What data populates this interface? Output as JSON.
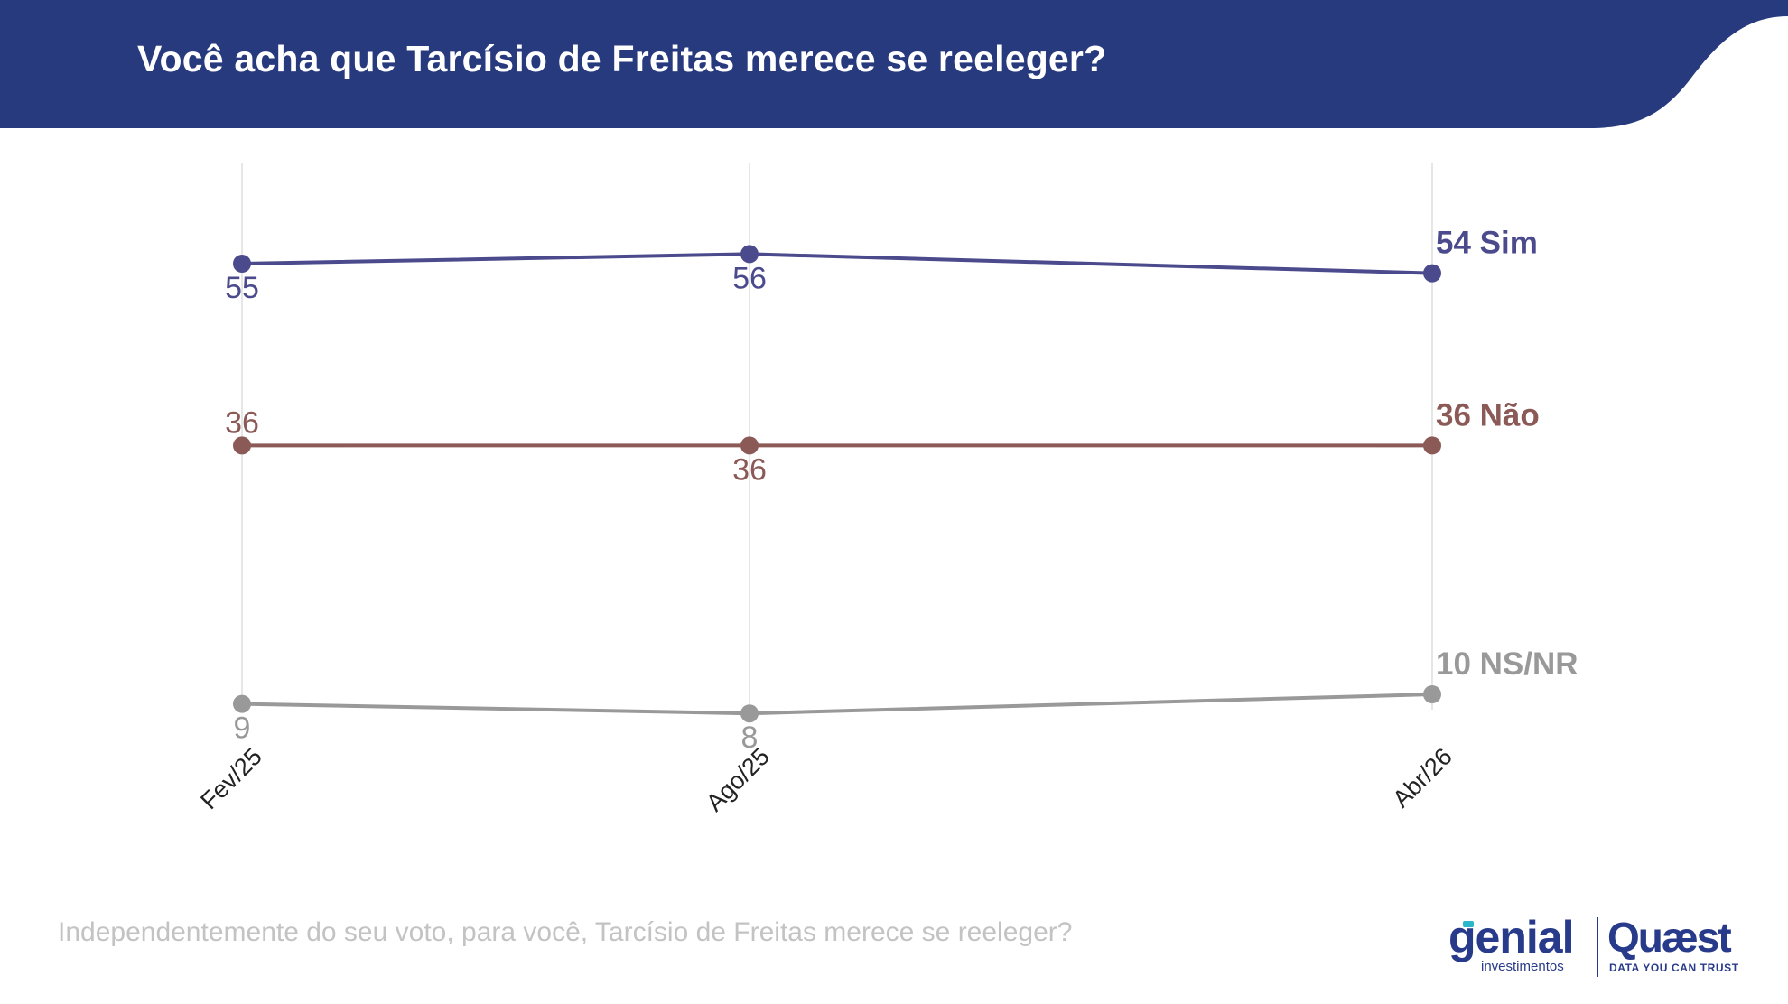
{
  "header": {
    "title": "Você acha que Tarcísio de Freitas merece se reeleger?"
  },
  "chart_data": {
    "type": "line",
    "title": "Você acha que Tarcísio de Freitas merece se reeleger?",
    "xlabel": "",
    "ylabel": "",
    "ylim": [
      5,
      60
    ],
    "grid": "vertical",
    "categories": [
      "Fev/25",
      "Ago/25",
      "Abr/26"
    ],
    "series": [
      {
        "name": "Sim",
        "end_label": "54 Sim",
        "values": [
          55,
          56,
          54
        ],
        "point_labels": [
          "55",
          "56",
          ""
        ],
        "color": "#4b4a8c"
      },
      {
        "name": "Não",
        "end_label": "36 Não",
        "values": [
          36,
          36,
          36
        ],
        "point_labels": [
          "36",
          "36",
          ""
        ],
        "color": "#8b5a57"
      },
      {
        "name": "NS/NR",
        "end_label": "10 NS/NR",
        "values": [
          9,
          8,
          10
        ],
        "point_labels": [
          "9",
          "8",
          ""
        ],
        "color": "#999999"
      }
    ]
  },
  "footnote": "Independentemente do seu voto, para você, Tarcísio de Freitas merece se reeleger?",
  "logos": {
    "genial": "genial",
    "genial_sub": "investimentos",
    "quaest": "Quæst",
    "quaest_sub": "DATA YOU CAN TRUST"
  },
  "colors": {
    "header": "#283a7e",
    "brand": "#283a8a"
  }
}
